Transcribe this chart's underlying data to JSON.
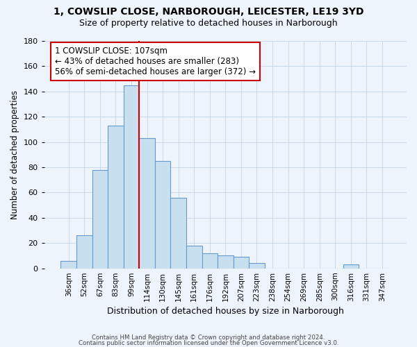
{
  "title1": "1, COWSLIP CLOSE, NARBOROUGH, LEICESTER, LE19 3YD",
  "title2": "Size of property relative to detached houses in Narborough",
  "xlabel": "Distribution of detached houses by size in Narborough",
  "ylabel": "Number of detached properties",
  "bar_labels": [
    "36sqm",
    "52sqm",
    "67sqm",
    "83sqm",
    "99sqm",
    "114sqm",
    "130sqm",
    "145sqm",
    "161sqm",
    "176sqm",
    "192sqm",
    "207sqm",
    "223sqm",
    "238sqm",
    "254sqm",
    "269sqm",
    "285sqm",
    "300sqm",
    "316sqm",
    "331sqm",
    "347sqm"
  ],
  "bar_values": [
    6,
    26,
    78,
    113,
    145,
    103,
    85,
    56,
    18,
    12,
    10,
    9,
    4,
    0,
    0,
    0,
    0,
    0,
    3,
    0,
    0
  ],
  "bar_color": "#c8dff0",
  "bar_edge_color": "#6699cc",
  "ylim": [
    0,
    180
  ],
  "yticks": [
    0,
    20,
    40,
    60,
    80,
    100,
    120,
    140,
    160,
    180
  ],
  "property_line_index": 5,
  "property_line_color": "#cc0000",
  "annotation_line1": "1 COWSLIP CLOSE: 107sqm",
  "annotation_line2": "← 43% of detached houses are smaller (283)",
  "annotation_line3": "56% of semi-detached houses are larger (372) →",
  "footer1": "Contains HM Land Registry data © Crown copyright and database right 2024.",
  "footer2": "Contains public sector information licensed under the Open Government Licence v3.0.",
  "bg_color": "#eef4fb",
  "grid_color": "#c5d5e8"
}
